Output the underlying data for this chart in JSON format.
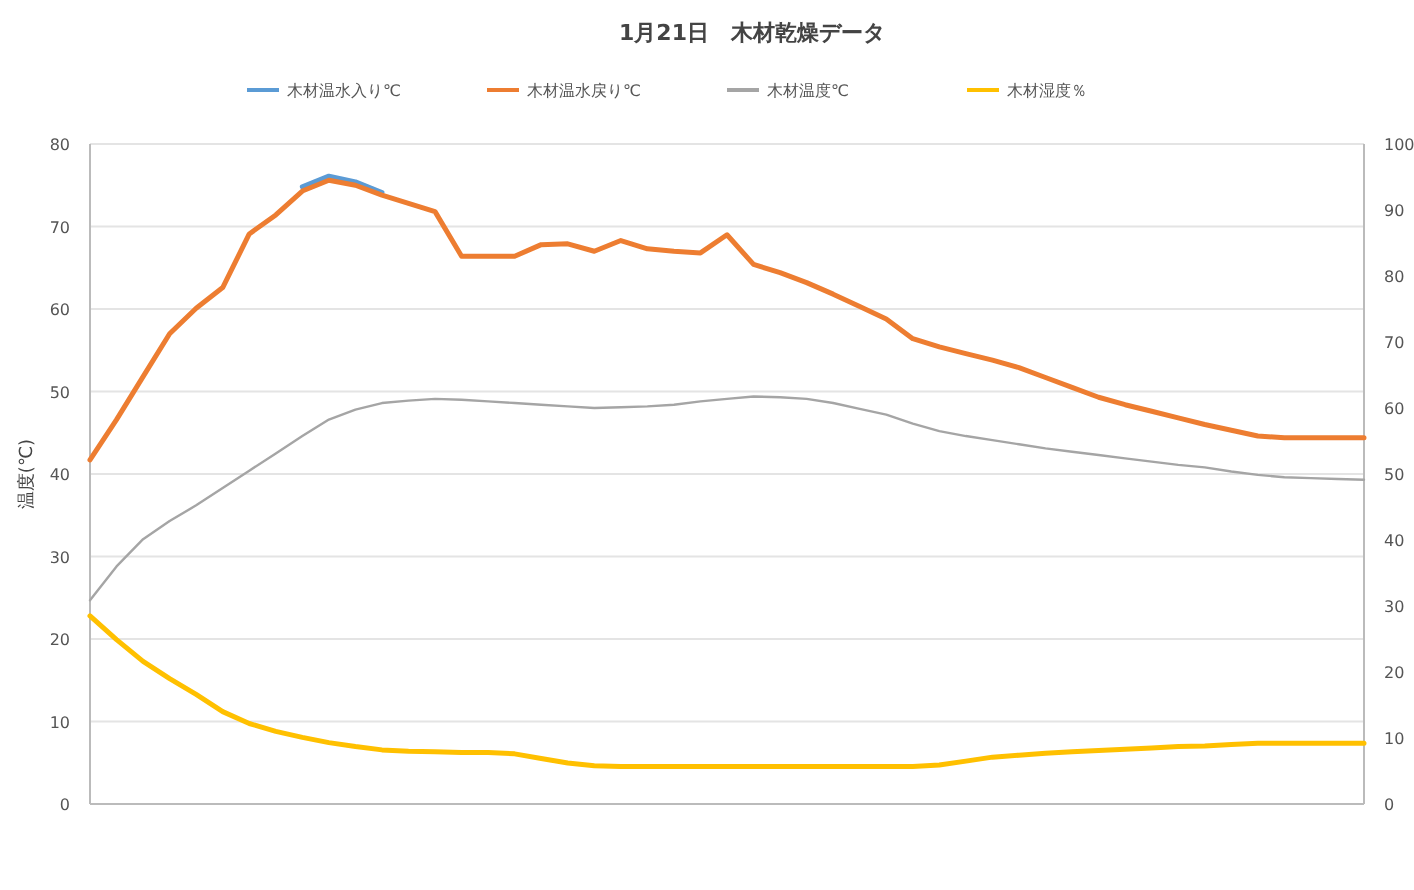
{
  "chart_data": {
    "type": "line",
    "title": "1月21日　木材乾燥データ",
    "ylabel": "温度(℃)",
    "categories": [
      null,
      null,
      null,
      null,
      null,
      null,
      null,
      null,
      null,
      null,
      null,
      null,
      null,
      null,
      null,
      null,
      null,
      null,
      null,
      null,
      null,
      null,
      null,
      null,
      null,
      null,
      null,
      null,
      null,
      null,
      null,
      null,
      null,
      null,
      null,
      null,
      null,
      null,
      null,
      null,
      null,
      null,
      null,
      null,
      null,
      null,
      null,
      null,
      null
    ],
    "ylim": [
      0,
      80
    ],
    "yticks": [
      0,
      10,
      20,
      30,
      40,
      50,
      60,
      70,
      80
    ],
    "y2lim": [
      0,
      100
    ],
    "y2ticks": [
      0,
      10,
      20,
      30,
      40,
      50,
      60,
      70,
      80,
      90,
      100
    ],
    "grid": "y",
    "legend": "top",
    "tick_labels": "y",
    "marker": "none",
    "line_style": "solid",
    "series": [
      {
        "name": "木材温水入り℃",
        "color": "#5b9bd5",
        "values": [
          null,
          null,
          null,
          null,
          null,
          null,
          null,
          null,
          74.8,
          76.1,
          75.4,
          74.1,
          null,
          null,
          null,
          null,
          null,
          null,
          null,
          null,
          null,
          null,
          null,
          null,
          null,
          null,
          null,
          null,
          null,
          null,
          null,
          null,
          null,
          null,
          null,
          null,
          null,
          null,
          null,
          null,
          null,
          null,
          null,
          null,
          null,
          null,
          null,
          null,
          null
        ]
      },
      {
        "name": "木材温水戻り℃",
        "color": "#ed7d31",
        "values": [
          41.7,
          46.6,
          51.8,
          57,
          60.1,
          62.6,
          69.1,
          71.4,
          74.3,
          75.6,
          75,
          73.8,
          72.8,
          71.8,
          66.4,
          66.4,
          66.4,
          67.8,
          67.9,
          67,
          68.3,
          67.3,
          67,
          66.8,
          69,
          65.4,
          64.4,
          63.2,
          61.8,
          60.3,
          58.8,
          56.4,
          55.4,
          54.6,
          53.8,
          52.9,
          51.7,
          50.5,
          49.3,
          48.4,
          47.6,
          46.8,
          46,
          45.3,
          44.6,
          44.4,
          44.4,
          44.4,
          44.4
        ]
      },
      {
        "name": "木材温度℃",
        "color": "#a5a5a5",
        "values": [
          24.7,
          28.8,
          32.1,
          34.3,
          36.2,
          38.3,
          40.4,
          42.5,
          44.6,
          46.6,
          47.8,
          48.6,
          48.9,
          49.1,
          49,
          48.8,
          48.6,
          48.4,
          48.2,
          48,
          48.1,
          48.2,
          48.4,
          48.8,
          49.1,
          49.4,
          49.3,
          49.1,
          48.6,
          47.9,
          47.2,
          46.1,
          45.2,
          44.6,
          44.1,
          43.6,
          43.1,
          42.7,
          42.3,
          41.9,
          41.5,
          41.1,
          40.8,
          40.3,
          39.9,
          39.6,
          39.5,
          39.4,
          39.3
        ]
      },
      {
        "name": "木材湿度％",
        "color": "#ffc000",
        "axis": "y2",
        "values": [
          28.5,
          24.9,
          21.6,
          19,
          16.6,
          14,
          12.2,
          11,
          10.1,
          9.3,
          8.7,
          8.2,
          8,
          7.9,
          7.8,
          7.8,
          7.6,
          6.9,
          6.2,
          5.8,
          5.7,
          5.7,
          5.7,
          5.7,
          5.7,
          5.7,
          5.7,
          5.7,
          5.7,
          5.7,
          5.7,
          5.7,
          5.9,
          6.5,
          7.1,
          7.4,
          7.7,
          7.9,
          8.1,
          8.3,
          8.5,
          8.7,
          8.8,
          9,
          9.2,
          9.2,
          9.2,
          9.2,
          9.2
        ]
      }
    ]
  }
}
